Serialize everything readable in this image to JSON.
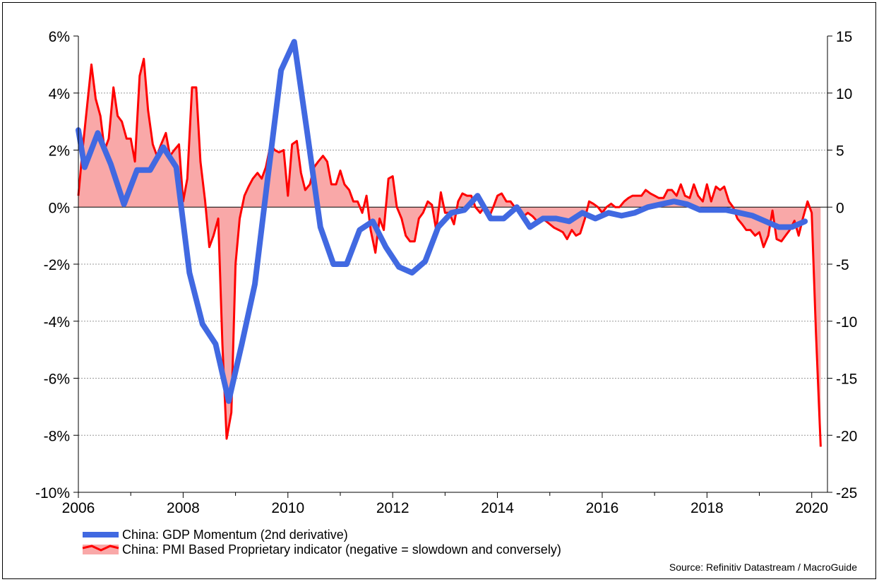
{
  "chart_data": {
    "type": "line",
    "title": "",
    "xlabel": "",
    "ylabel_left": "",
    "ylabel_right": "",
    "xlim": [
      2006,
      2020.3
    ],
    "x_ticks": [
      "2006",
      "2008",
      "2010",
      "2012",
      "2014",
      "2016",
      "2018",
      "2020"
    ],
    "x_tick_values": [
      2006,
      2008,
      2010,
      2012,
      2014,
      2016,
      2018,
      2020
    ],
    "y_left": {
      "min": -10,
      "max": 6,
      "step": 2,
      "tick_labels": [
        "6%",
        "4%",
        "2%",
        "0%",
        "-2%",
        "-4%",
        "-6%",
        "-8%",
        "-10%"
      ]
    },
    "y_right": {
      "min": -25,
      "max": 15,
      "step": 5,
      "tick_labels": [
        "15",
        "10",
        "5",
        "0",
        "-5",
        "-10",
        "-15",
        "-20",
        "-25"
      ]
    },
    "grid": true,
    "legend_placement": "bottom-left",
    "series": [
      {
        "name": "China: GDP Momentum (2nd derivative)",
        "axis": "left",
        "color": "#4169E1",
        "x": [
          2006.0,
          2006.12,
          2006.37,
          2006.62,
          2006.87,
          2007.12,
          2007.37,
          2007.62,
          2007.87,
          2008.12,
          2008.37,
          2008.62,
          2008.87,
          2009.12,
          2009.37,
          2009.62,
          2009.87,
          2010.12,
          2010.37,
          2010.62,
          2010.87,
          2011.12,
          2011.37,
          2011.62,
          2011.87,
          2012.12,
          2012.37,
          2012.62,
          2012.87,
          2013.12,
          2013.37,
          2013.62,
          2013.87,
          2014.12,
          2014.37,
          2014.62,
          2014.87,
          2015.12,
          2015.37,
          2015.62,
          2015.87,
          2016.12,
          2016.37,
          2016.62,
          2016.87,
          2017.12,
          2017.37,
          2017.62,
          2017.87,
          2018.12,
          2018.37,
          2018.62,
          2018.87,
          2019.12,
          2019.37,
          2019.62,
          2019.87
        ],
        "values": [
          2.7,
          1.4,
          2.6,
          1.5,
          0.1,
          1.3,
          1.3,
          2.1,
          1.4,
          -2.3,
          -4.1,
          -4.8,
          -6.8,
          -4.8,
          -2.7,
          1.1,
          4.8,
          5.8,
          2.6,
          -0.7,
          -2.0,
          -2.0,
          -0.8,
          -0.5,
          -1.4,
          -2.1,
          -2.3,
          -1.9,
          -0.7,
          -0.2,
          -0.1,
          0.4,
          -0.4,
          -0.4,
          0.0,
          -0.7,
          -0.4,
          -0.4,
          -0.5,
          -0.2,
          -0.4,
          -0.2,
          -0.3,
          -0.2,
          0.0,
          0.1,
          0.2,
          0.1,
          -0.1,
          -0.1,
          -0.1,
          -0.2,
          -0.3,
          -0.5,
          -0.7,
          -0.7,
          -0.5
        ]
      },
      {
        "name": "China: PMI Based Proprietary indicator (negative = slowdown and conversely)",
        "axis": "right",
        "color": "#FF0000",
        "fill": "#F9A8A8",
        "x": [
          2006.0,
          2006.08,
          2006.17,
          2006.25,
          2006.33,
          2006.42,
          2006.5,
          2006.58,
          2006.67,
          2006.75,
          2006.83,
          2006.92,
          2007.0,
          2007.08,
          2007.17,
          2007.25,
          2007.33,
          2007.42,
          2007.5,
          2007.58,
          2007.67,
          2007.75,
          2007.83,
          2007.92,
          2008.0,
          2008.08,
          2008.17,
          2008.25,
          2008.33,
          2008.42,
          2008.5,
          2008.58,
          2008.67,
          2008.75,
          2008.83,
          2008.92,
          2009.0,
          2009.08,
          2009.17,
          2009.25,
          2009.33,
          2009.42,
          2009.5,
          2009.58,
          2009.67,
          2009.75,
          2009.83,
          2009.92,
          2010.0,
          2010.08,
          2010.17,
          2010.25,
          2010.33,
          2010.42,
          2010.5,
          2010.58,
          2010.67,
          2010.75,
          2010.83,
          2010.92,
          2011.0,
          2011.08,
          2011.17,
          2011.25,
          2011.33,
          2011.42,
          2011.5,
          2011.58,
          2011.67,
          2011.75,
          2011.83,
          2011.92,
          2012.0,
          2012.08,
          2012.17,
          2012.25,
          2012.33,
          2012.42,
          2012.5,
          2012.58,
          2012.67,
          2012.75,
          2012.83,
          2012.92,
          2013.0,
          2013.08,
          2013.17,
          2013.25,
          2013.33,
          2013.42,
          2013.5,
          2013.58,
          2013.67,
          2013.75,
          2013.83,
          2013.92,
          2014.0,
          2014.08,
          2014.17,
          2014.25,
          2014.33,
          2014.42,
          2014.5,
          2014.58,
          2014.67,
          2014.75,
          2014.83,
          2014.92,
          2015.0,
          2015.08,
          2015.17,
          2015.25,
          2015.33,
          2015.42,
          2015.5,
          2015.58,
          2015.67,
          2015.75,
          2015.83,
          2015.92,
          2016.0,
          2016.08,
          2016.17,
          2016.25,
          2016.33,
          2016.42,
          2016.5,
          2016.58,
          2016.67,
          2016.75,
          2016.83,
          2016.92,
          2017.0,
          2017.08,
          2017.17,
          2017.25,
          2017.33,
          2017.42,
          2017.5,
          2017.58,
          2017.67,
          2017.75,
          2017.83,
          2017.92,
          2018.0,
          2018.08,
          2018.17,
          2018.25,
          2018.33,
          2018.42,
          2018.5,
          2018.58,
          2018.67,
          2018.75,
          2018.83,
          2018.92,
          2019.0,
          2019.08,
          2019.17,
          2019.25,
          2019.33,
          2019.42,
          2019.5,
          2019.58,
          2019.67,
          2019.75,
          2019.83,
          2019.92,
          2020.0,
          2020.08,
          2020.17
        ],
        "values": [
          1.0,
          5.0,
          9.0,
          12.5,
          9.5,
          8.0,
          5.0,
          6.0,
          10.5,
          8.0,
          7.5,
          6.0,
          6.0,
          4.0,
          11.5,
          13.0,
          8.5,
          5.5,
          4.5,
          5.5,
          6.5,
          4.5,
          5.0,
          5.5,
          0.5,
          2.5,
          10.5,
          10.5,
          4.0,
          0.5,
          -3.5,
          -2.5,
          -1.0,
          -12.0,
          -20.3,
          -18.0,
          -5.0,
          -1.0,
          1.0,
          1.8,
          2.5,
          3.0,
          2.5,
          3.5,
          5.5,
          5.0,
          4.8,
          5.0,
          1.0,
          5.5,
          5.8,
          3.0,
          1.5,
          2.0,
          3.5,
          4.0,
          4.5,
          4.0,
          2.0,
          2.0,
          3.2,
          2.0,
          1.5,
          0.5,
          0.5,
          -0.5,
          1.0,
          -2.0,
          -4.0,
          -1.0,
          -2.0,
          2.5,
          2.7,
          0.0,
          -1.0,
          -2.5,
          -3.0,
          -3.0,
          -1.0,
          -0.5,
          0.5,
          0.2,
          -2.0,
          1.3,
          -0.5,
          -0.5,
          -1.5,
          0.5,
          1.2,
          1.0,
          1.0,
          0.0,
          -0.5,
          0.0,
          -1.0,
          0.0,
          1.0,
          1.2,
          0.5,
          0.5,
          0.0,
          -0.5,
          -0.8,
          -0.5,
          -0.8,
          -1.2,
          -1.0,
          -1.2,
          -1.5,
          -1.8,
          -2.0,
          -2.2,
          -2.8,
          -2.0,
          -2.5,
          -2.3,
          -1.0,
          0.5,
          0.3,
          0.0,
          -0.5,
          0.0,
          0.3,
          0.0,
          0.0,
          0.5,
          0.8,
          1.0,
          1.0,
          1.0,
          1.5,
          1.2,
          1.0,
          0.8,
          0.8,
          1.5,
          1.5,
          1.0,
          2.0,
          1.0,
          0.8,
          2.0,
          1.0,
          0.5,
          2.0,
          0.5,
          1.8,
          1.5,
          1.8,
          0.5,
          0.0,
          -1.0,
          -1.5,
          -2.0,
          -2.0,
          -2.5,
          -2.2,
          -3.5,
          -2.5,
          -0.3,
          -2.8,
          -3.0,
          -2.5,
          -2.0,
          -1.2,
          -2.5,
          -1.0,
          0.5,
          -0.5,
          -11.0,
          -21.0
        ]
      }
    ],
    "source": "Source: Refinitiv Datastream / MacroGuide"
  }
}
